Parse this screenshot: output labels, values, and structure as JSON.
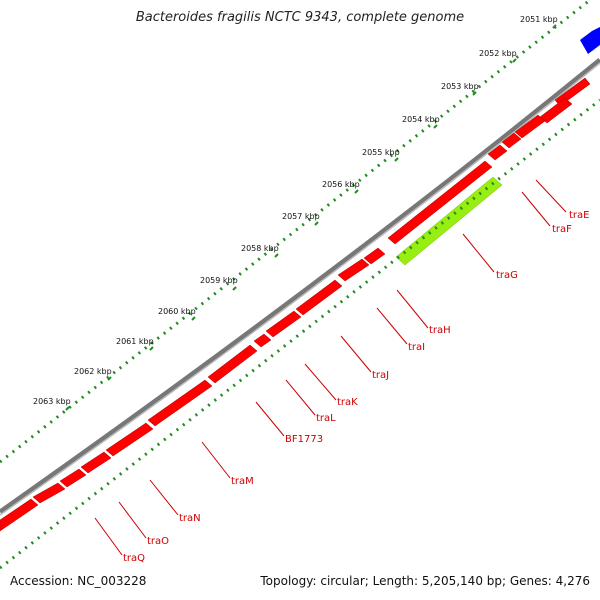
{
  "title": "Bacteroides fragilis NCTC 9343, complete genome",
  "accession": "Accession: NC_003228",
  "summary": "Topology: circular; Length: 5,205,140 bp; Genes: 4,276",
  "colors": {
    "backbone": "#8c8c8c",
    "gene": "#ff0000",
    "highlight_gene": "#99ee11",
    "other_gene": "#0000ff",
    "tick": "#228b22",
    "label": "#cc0000"
  },
  "kbp_ticks": [
    "2051 kbp",
    "2052 kbp",
    "2053 kbp",
    "2054 kbp",
    "2055 kbp",
    "2056 kbp",
    "2057 kbp",
    "2058 kbp",
    "2059 kbp",
    "2060 kbp",
    "2061 kbp",
    "2062 kbp",
    "2063 kbp"
  ],
  "gene_labels": [
    "traE",
    "traF",
    "traG",
    "traH",
    "traI",
    "traJ",
    "traK",
    "traL",
    "BF1773",
    "traM",
    "traN",
    "traO",
    "traQ"
  ]
}
